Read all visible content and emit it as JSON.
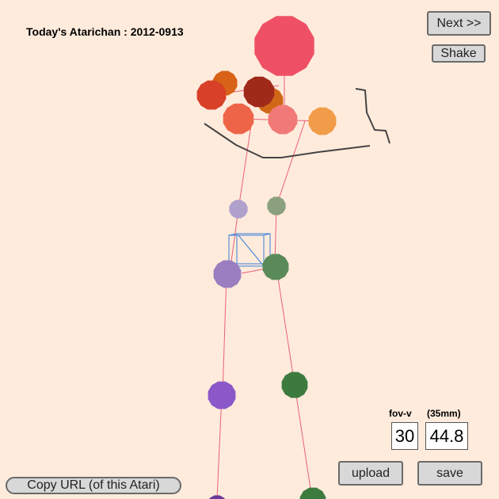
{
  "header": {
    "title": "Today's Atarichan : 2012-0913"
  },
  "buttons": {
    "next_label": "Next >>",
    "shake_label": "Shake",
    "upload_label": "upload",
    "save_label": "save",
    "copy_url_label": "Copy URL (of this Atari)"
  },
  "camera": {
    "fov_label": "fov-v",
    "mm_label": "(35mm)",
    "fov_value": "30",
    "mm_value": "44.8"
  },
  "colors": {
    "background": "#ffebdc",
    "bone": "#e8607a",
    "stroke": "#444444",
    "cube": "#3a7fd6"
  },
  "figure": {
    "joints": [
      {
        "name": "head",
        "color": "#ef5065"
      },
      {
        "name": "shoulder-left-back",
        "color": "#d86218"
      },
      {
        "name": "shoulder-right-back",
        "color": "#d06818"
      },
      {
        "name": "shoulder-left",
        "color": "#d84028"
      },
      {
        "name": "shoulder-right",
        "color": "#a02a1a"
      },
      {
        "name": "elbow-left",
        "color": "#ee6448"
      },
      {
        "name": "chest",
        "color": "#f17a78"
      },
      {
        "name": "elbow-right",
        "color": "#f19c48"
      },
      {
        "name": "hand-left",
        "color": "#b0a0cc"
      },
      {
        "name": "hand-right",
        "color": "#8aa07e"
      },
      {
        "name": "hip-left",
        "color": "#9a7ec0"
      },
      {
        "name": "hip-right",
        "color": "#5a8a58"
      },
      {
        "name": "knee-left",
        "color": "#8a58c8"
      },
      {
        "name": "knee-right",
        "color": "#3d7a3e"
      },
      {
        "name": "foot-left",
        "color": "#6a3a9a"
      },
      {
        "name": "foot-right",
        "color": "#3d7a3e"
      }
    ]
  }
}
